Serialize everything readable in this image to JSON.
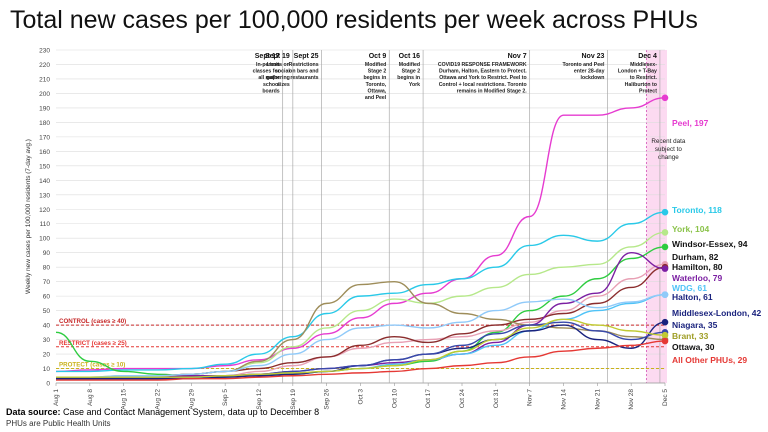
{
  "title": "Total new cases per 100,000 residents per week across PHUs",
  "footer": {
    "source_label": "Data source:",
    "source_text": " Case and Contact Management System, data up to December 8",
    "note": "PHUs are Public Health Units"
  },
  "chart_data": {
    "type": "line",
    "title": "Total new cases per 100,000 residents per week across PHUs",
    "ylabel": "Weekly new cases per 100,000 residents (7-day avg.)",
    "xlabel": "",
    "ylim": [
      0,
      230
    ],
    "yticks": [
      0,
      10,
      20,
      30,
      40,
      50,
      60,
      70,
      80,
      90,
      100,
      110,
      120,
      130,
      140,
      150,
      160,
      170,
      180,
      190,
      200,
      210,
      220,
      230
    ],
    "grid": true,
    "x_ticks": [
      "Aug 1",
      "Aug 8",
      "Aug 15",
      "Aug 22",
      "Aug 29",
      "Sep 5",
      "Sep 12",
      "Sep 19",
      "Sep 26",
      "Oct 3",
      "Oct 10",
      "Oct 17",
      "Oct 24",
      "Oct 31",
      "Nov 7",
      "Nov 14",
      "Nov 21",
      "Nov 28",
      "Dec 5"
    ],
    "x": [
      "Aug 1",
      "Aug 8",
      "Aug 15",
      "Aug 22",
      "Aug 29",
      "Sep 5",
      "Sep 12",
      "Sep 19",
      "Sep 26",
      "Oct 3",
      "Oct 10",
      "Oct 17",
      "Oct 24",
      "Oct 31",
      "Nov 7",
      "Nov 14",
      "Nov 21",
      "Nov 28",
      "Dec 5"
    ],
    "series": [
      {
        "name": "Peel",
        "end_label": "Peel, 197",
        "color": "#e63bd0",
        "values": [
          8,
          9,
          10,
          10,
          10,
          12,
          16,
          24,
          34,
          45,
          55,
          62,
          72,
          88,
          115,
          185,
          185,
          190,
          197
        ]
      },
      {
        "name": "Toronto",
        "end_label": "Toronto, 118",
        "color": "#29c9e8",
        "values": [
          8,
          8,
          9,
          9,
          10,
          13,
          20,
          32,
          48,
          60,
          62,
          68,
          72,
          80,
          95,
          102,
          98,
          110,
          118
        ]
      },
      {
        "name": "York",
        "end_label": "York, 104",
        "color": "#b6e88a",
        "values": [
          4,
          4,
          5,
          5,
          6,
          8,
          14,
          25,
          38,
          50,
          58,
          55,
          60,
          66,
          75,
          80,
          82,
          94,
          104
        ]
      },
      {
        "name": "Windsor-Essex",
        "end_label": "Windsor-Essex, 94",
        "color": "#2ecc40",
        "values": [
          35,
          15,
          8,
          6,
          5,
          5,
          6,
          6,
          8,
          10,
          12,
          15,
          22,
          35,
          50,
          60,
          72,
          86,
          94
        ]
      },
      {
        "name": "Durham",
        "end_label": "Durham, 82",
        "color": "#e8a0b4",
        "values": [
          3,
          3,
          3,
          4,
          4,
          5,
          8,
          12,
          18,
          24,
          28,
          30,
          32,
          36,
          42,
          50,
          60,
          72,
          82
        ]
      },
      {
        "name": "Hamilton",
        "end_label": "Hamilton, 80",
        "color": "#8b2d2d",
        "values": [
          4,
          4,
          4,
          5,
          6,
          8,
          10,
          14,
          18,
          26,
          32,
          28,
          34,
          40,
          44,
          48,
          55,
          66,
          80
        ]
      },
      {
        "name": "Waterloo",
        "end_label": "Waterloo, 79",
        "color": "#7b1fa2",
        "values": [
          4,
          4,
          4,
          4,
          5,
          5,
          6,
          8,
          10,
          12,
          14,
          16,
          20,
          28,
          40,
          55,
          62,
          90,
          79
        ]
      },
      {
        "name": "Ottawa",
        "end_label": "Ottawa, 30",
        "color": "#9e8d5a",
        "values": [
          3,
          3,
          4,
          5,
          6,
          8,
          15,
          30,
          55,
          68,
          70,
          55,
          48,
          44,
          40,
          38,
          36,
          32,
          30
        ]
      },
      {
        "name": "WDG",
        "end_label": "WDG, 61",
        "color": "#4fc3f7",
        "values": [
          3,
          3,
          3,
          3,
          4,
          4,
          5,
          6,
          8,
          10,
          13,
          16,
          20,
          26,
          36,
          44,
          50,
          55,
          61
        ]
      },
      {
        "name": "Halton",
        "end_label": "Halton, 61",
        "color": "#90caf9",
        "values": [
          4,
          4,
          5,
          5,
          6,
          8,
          12,
          20,
          30,
          38,
          40,
          38,
          42,
          50,
          56,
          58,
          52,
          56,
          61
        ]
      },
      {
        "name": "Middlesex-London",
        "end_label": "Middlesex-London, 42",
        "color": "#1a237e",
        "values": [
          3,
          3,
          3,
          3,
          3,
          4,
          5,
          6,
          8,
          12,
          16,
          20,
          24,
          30,
          36,
          40,
          30,
          24,
          42
        ]
      },
      {
        "name": "Niagara",
        "end_label": "Niagara, 35",
        "color": "#3949ab",
        "values": [
          4,
          4,
          4,
          4,
          4,
          5,
          6,
          8,
          10,
          12,
          16,
          20,
          26,
          34,
          40,
          42,
          36,
          30,
          35
        ]
      },
      {
        "name": "Brant",
        "end_label": "Brant, 33",
        "color": "#c0ca33",
        "values": [
          4,
          4,
          4,
          4,
          4,
          5,
          6,
          7,
          8,
          10,
          12,
          16,
          22,
          30,
          38,
          44,
          40,
          36,
          33
        ]
      },
      {
        "name": "All Other PHUs",
        "end_label": "All Other PHUs, 29",
        "color": "#e53935",
        "values": [
          2,
          2,
          2,
          2,
          3,
          3,
          4,
          5,
          6,
          7,
          8,
          10,
          12,
          14,
          18,
          22,
          24,
          26,
          29
        ]
      }
    ],
    "thresholds": [
      {
        "label": "CONTROL (cases ≥ 40)",
        "value": 40,
        "color": "#c62828"
      },
      {
        "label": "RESTRICT (cases ≥ 25)",
        "value": 25,
        "color": "#e53935"
      },
      {
        "label": "PROTECT (cases ≥ 10)",
        "value": 10,
        "color": "#c9b21a"
      }
    ],
    "events": [
      {
        "date": "Sept 17",
        "text": [
          "In-person",
          "classes for",
          "all major",
          "school",
          "boards"
        ],
        "x": "Sep 19",
        "offset": -0.3
      },
      {
        "date": "Sept 19",
        "text": [
          "Limits on",
          "social",
          "gathering",
          "sizes"
        ],
        "x": "Sep 19",
        "offset": 0
      },
      {
        "date": "Sept 25",
        "text": [
          "Restrictions",
          "on bars and",
          "restaurants"
        ],
        "x": "Sep 26",
        "offset": -0.15
      },
      {
        "date": "Oct 9",
        "text": [
          "Modified",
          "Stage 2",
          "begins in",
          "Toronto,",
          "Ottawa,",
          "and Peel"
        ],
        "x": "Oct 10",
        "offset": -0.15
      },
      {
        "date": "Oct 16",
        "text": [
          "Modified",
          "Stage 2",
          "begins in",
          "York"
        ],
        "x": "Oct 17",
        "offset": -0.15
      },
      {
        "date": "Nov 7",
        "text": [
          "COVID19 RESPONSE FRAMEWORK",
          "Durham, Halton, Eastern to Protect.",
          "Ottawa and York to Restrict. Peel to",
          "Control + local restrictions. Toronto",
          "remains in Modified Stage 2."
        ],
        "x": "Nov 7",
        "offset": 0
      },
      {
        "date": "Nov 23",
        "text": [
          "Toronto and Peel",
          "enter 28-day",
          "lockdown"
        ],
        "x": "Nov 21",
        "offset": 0.3
      },
      {
        "date": "Dec 4",
        "text": [
          "Middlesex-",
          "London + T-Bay",
          "to Restrict.",
          "Haliburton to",
          "Protect"
        ],
        "x": "Dec 5",
        "offset": -0.15
      }
    ],
    "shade_note": [
      "Recent data",
      "subject to",
      "change"
    ]
  }
}
